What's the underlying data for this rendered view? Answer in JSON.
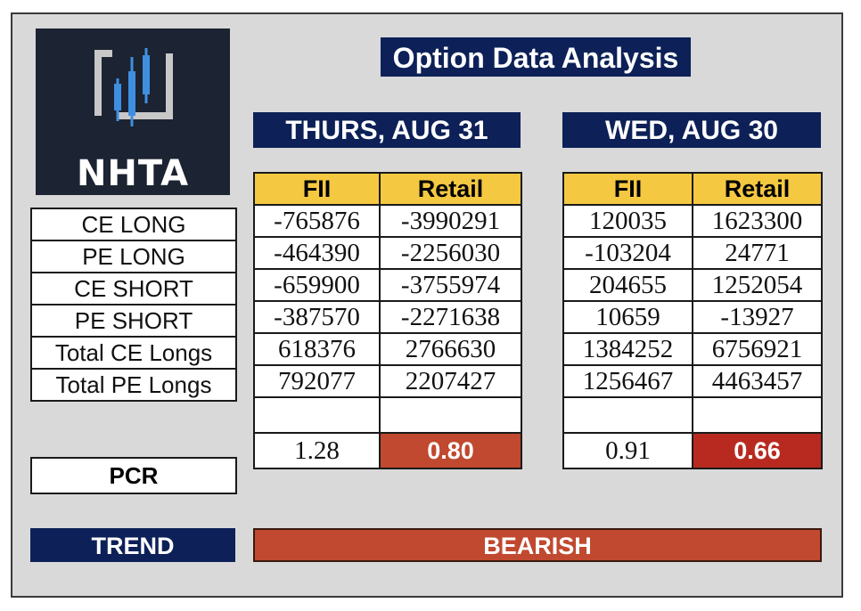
{
  "logo": {
    "text": "NHTA"
  },
  "title": "Option Data Analysis",
  "dates": {
    "left": "THURS, AUG 31",
    "right": "WED, AUG 30"
  },
  "headers": {
    "fii": "FII",
    "retail": "Retail"
  },
  "rows": [
    {
      "label": "CE LONG",
      "aug31_fii": "-765876",
      "aug31_retail": "-3990291",
      "aug30_fii": "120035",
      "aug30_retail": "1623300"
    },
    {
      "label": "PE LONG",
      "aug31_fii": "-464390",
      "aug31_retail": "-2256030",
      "aug30_fii": "-103204",
      "aug30_retail": "24771"
    },
    {
      "label": "CE SHORT",
      "aug31_fii": "-659900",
      "aug31_retail": "-3755974",
      "aug30_fii": "204655",
      "aug30_retail": "1252054"
    },
    {
      "label": "PE SHORT",
      "aug31_fii": "-387570",
      "aug31_retail": "-2271638",
      "aug30_fii": "10659",
      "aug30_retail": "-13927"
    },
    {
      "label": "Total CE Longs",
      "aug31_fii": "618376",
      "aug31_retail": "2766630",
      "aug30_fii": "1384252",
      "aug30_retail": "6756921"
    },
    {
      "label": "Total PE Longs",
      "aug31_fii": "792077",
      "aug31_retail": "2207427",
      "aug30_fii": "1256467",
      "aug30_retail": "4463457"
    }
  ],
  "pcr": {
    "label": "PCR",
    "aug31_fii": "1.28",
    "aug31_retail": "0.80",
    "aug30_fii": "0.91",
    "aug30_retail": "0.66"
  },
  "trend": {
    "label": "TREND",
    "value": "BEARISH"
  },
  "colors": {
    "navy": "#0d2158",
    "header_yellow": "#f5c842",
    "bearish_red": "#c0492f",
    "pcr_red": "#b82a20",
    "logo_bg": "#1c2332"
  }
}
